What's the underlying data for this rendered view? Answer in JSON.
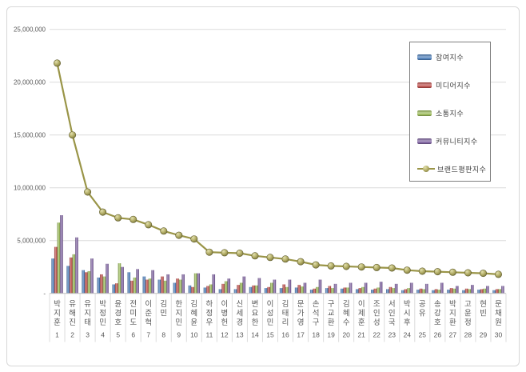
{
  "frame": {
    "background": "#ffffff",
    "border_color": "#d8d8d8"
  },
  "legend": {
    "border_color": "#7f7f7f",
    "position": "upper-right"
  },
  "chart_data": {
    "type": "bar",
    "title": "",
    "xlabel": "",
    "ylabel": "",
    "ylim": [
      0,
      25000000
    ],
    "ytick_step": 5000000,
    "ytick_labels": [
      "-",
      "5,000,000",
      "10,000,000",
      "15,000,000",
      "20,000,000",
      "25,000,000"
    ],
    "grid": true,
    "legend_position": "upper-right",
    "categories": [
      "박지훈",
      "유해진",
      "유지태",
      "박정민",
      "윤경호",
      "전미도",
      "이준혁",
      "김민",
      "한지민",
      "김혜윤",
      "하정우",
      "이병헌",
      "신세경",
      "변요한",
      "이성민",
      "김태리",
      "문가영",
      "손석구",
      "구교환",
      "김혜수",
      "이제훈",
      "조인성",
      "서인국",
      "박시후",
      "공유",
      "송강호",
      "박지환",
      "고윤정",
      "현빈",
      "문채원"
    ],
    "ranks": [
      1,
      2,
      3,
      4,
      5,
      6,
      7,
      8,
      9,
      10,
      11,
      12,
      13,
      14,
      15,
      16,
      17,
      18,
      19,
      20,
      21,
      22,
      23,
      24,
      25,
      26,
      27,
      28,
      29,
      30
    ],
    "series": [
      {
        "name": "참여지수",
        "color": "#4F81BD",
        "values": [
          3300000,
          2600000,
          2200000,
          1500000,
          850000,
          2000000,
          1600000,
          1300000,
          1000000,
          750000,
          550000,
          400000,
          400000,
          600000,
          500000,
          500000,
          550000,
          350000,
          500000,
          450000,
          400000,
          350000,
          400000,
          300000,
          350000,
          300000,
          350000,
          300000,
          350000,
          300000
        ]
      },
      {
        "name": "미디어지수",
        "color": "#C0504D",
        "values": [
          4400000,
          3400000,
          2000000,
          1800000,
          950000,
          1200000,
          1300000,
          1600000,
          1400000,
          600000,
          700000,
          900000,
          800000,
          750000,
          600000,
          850000,
          800000,
          450000,
          700000,
          550000,
          500000,
          450000,
          600000,
          400000,
          450000,
          400000,
          500000,
          450000,
          400000,
          400000
        ]
      },
      {
        "name": "소통지수",
        "color": "#9BBB59",
        "values": [
          6700000,
          3700000,
          2100000,
          1600000,
          2850000,
          1500000,
          1400000,
          1200000,
          1300000,
          1900000,
          850000,
          1150000,
          1000000,
          750000,
          1000000,
          600000,
          650000,
          600000,
          500000,
          550000,
          600000,
          550000,
          500000,
          500000,
          400000,
          350000,
          450000,
          400000,
          450000,
          400000
        ]
      },
      {
        "name": "커뮤니티지수",
        "color": "#8064A2",
        "values": [
          7400000,
          5300000,
          3300000,
          2800000,
          2500000,
          2300000,
          2200000,
          1800000,
          1800000,
          1900000,
          1800000,
          1400000,
          1600000,
          1450000,
          1300000,
          1300000,
          1000000,
          1300000,
          900000,
          1000000,
          1000000,
          1100000,
          900000,
          1000000,
          900000,
          1000000,
          700000,
          800000,
          700000,
          700000
        ]
      }
    ],
    "line_series": {
      "name": "브랜드평판지수",
      "color": "#9A9548",
      "marker": "sphere",
      "values": [
        21800000,
        15000000,
        9600000,
        7700000,
        7150000,
        7000000,
        6500000,
        5900000,
        5500000,
        5150000,
        3900000,
        3850000,
        3800000,
        3550000,
        3400000,
        3250000,
        3000000,
        2700000,
        2600000,
        2550000,
        2500000,
        2450000,
        2400000,
        2200000,
        2100000,
        2050000,
        2000000,
        1950000,
        1900000,
        1800000
      ]
    }
  }
}
